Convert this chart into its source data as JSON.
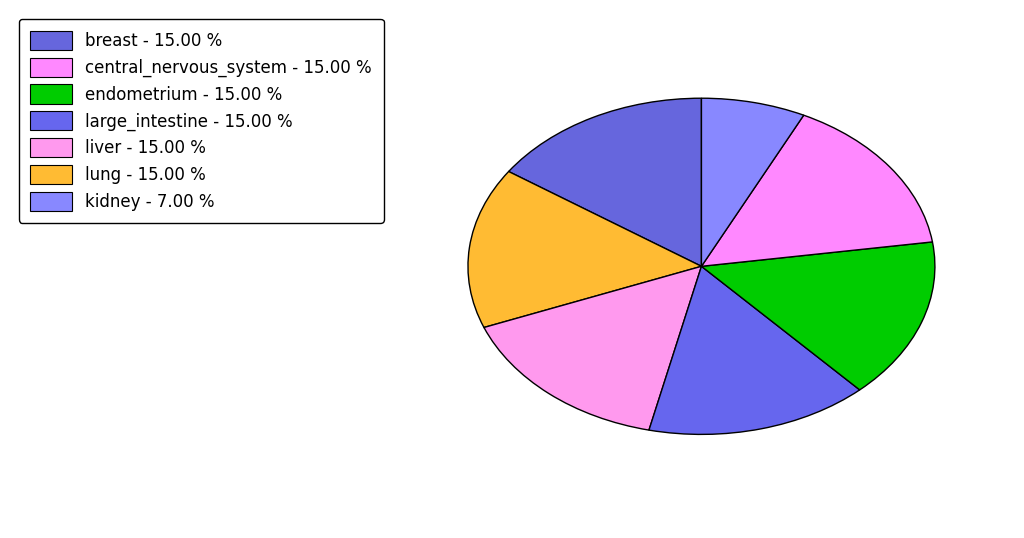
{
  "labels": [
    "breast",
    "central_nervous_system",
    "endometrium",
    "large_intestine",
    "liver",
    "lung",
    "kidney"
  ],
  "values": [
    15.0,
    15.0,
    15.0,
    15.0,
    15.0,
    15.0,
    7.0
  ],
  "colors": [
    "#6666dd",
    "#ff88ff",
    "#00cc00",
    "#6666ee",
    "#ff99ee",
    "#ffbb33",
    "#8888ff"
  ],
  "legend_labels": [
    "breast - 15.00 %",
    "central_nervous_system - 15.00 %",
    "endometrium - 15.00 %",
    "large_intestine - 15.00 %",
    "liver - 15.00 %",
    "lung - 15.00 %",
    "kidney - 7.00 %"
  ],
  "pie_order": [
    0,
    5,
    4,
    3,
    2,
    1,
    6
  ],
  "background_color": "#ffffff",
  "startangle": 90,
  "figsize": [
    10.24,
    5.38
  ],
  "dpi": 100
}
